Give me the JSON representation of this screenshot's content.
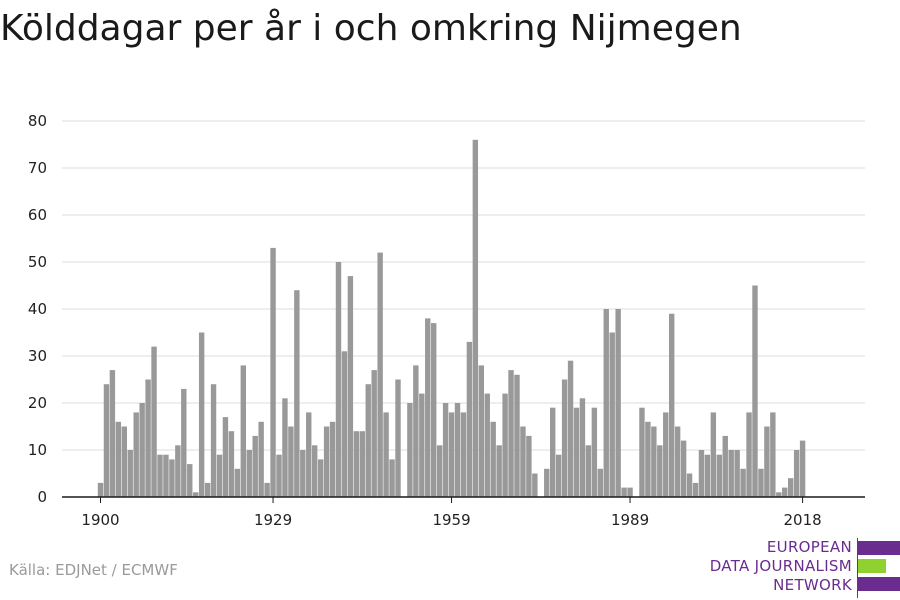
{
  "header": {
    "title": "Kölddagar per år i och omkring Nijmegen"
  },
  "footer": {
    "source": "Källa: EDJNet / ECMWF"
  },
  "logo": {
    "lines": [
      "EUROPEAN",
      "DATA JOURNALISM",
      "NETWORK"
    ],
    "colors": {
      "purple": "#6b2c8f",
      "green": "#8fd12e"
    }
  },
  "chart_data": {
    "type": "bar",
    "title": "Kölddagar per år i och omkring Nijmegen",
    "xlabel": "",
    "ylabel": "",
    "bar_color": "#999999",
    "x_start": 1900,
    "x_end": 2018,
    "xticks": [
      1900,
      1929,
      1959,
      1989,
      2018
    ],
    "yticks": [
      0,
      10,
      20,
      30,
      40,
      50,
      60,
      70,
      80
    ],
    "ylim": [
      0,
      80
    ],
    "grid": true,
    "values": [
      3,
      24,
      27,
      16,
      15,
      10,
      18,
      20,
      25,
      32,
      9,
      9,
      8,
      11,
      23,
      7,
      1,
      35,
      3,
      24,
      9,
      17,
      14,
      6,
      28,
      10,
      13,
      16,
      3,
      53,
      9,
      21,
      15,
      44,
      10,
      18,
      11,
      8,
      15,
      16,
      50,
      31,
      47,
      14,
      14,
      24,
      27,
      52,
      18,
      8,
      25,
      0,
      20,
      28,
      22,
      38,
      37,
      11,
      20,
      18,
      20,
      18,
      33,
      76,
      28,
      22,
      16,
      11,
      22,
      27,
      26,
      15,
      13,
      5,
      0,
      6,
      19,
      9,
      25,
      29,
      19,
      21,
      11,
      19,
      6,
      40,
      35,
      40,
      2,
      2,
      0,
      19,
      16,
      15,
      11,
      18,
      39,
      15,
      12,
      5,
      3,
      10,
      9,
      18,
      9,
      13,
      10,
      10,
      6,
      18,
      45,
      6,
      15,
      18,
      1,
      2,
      4,
      10,
      12
    ]
  }
}
